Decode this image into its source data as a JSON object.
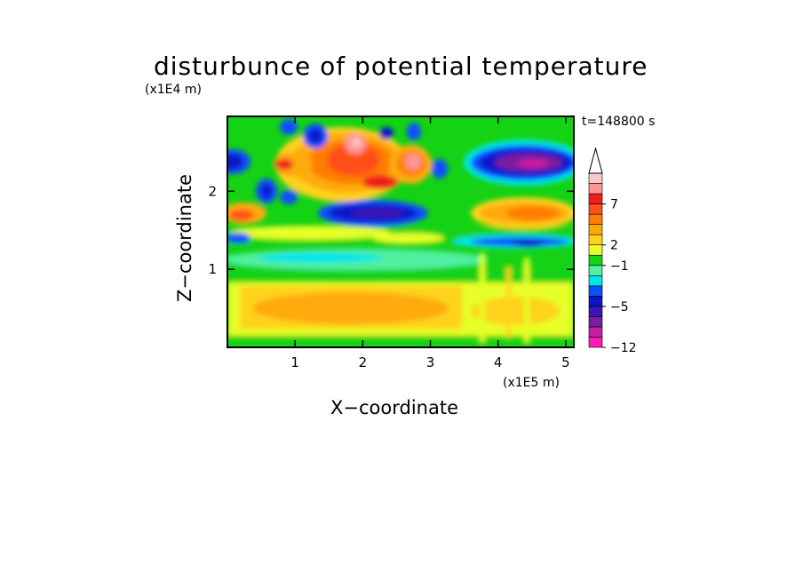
{
  "chart_data": {
    "type": "heatmap",
    "title": "disturbunce of potential temperature",
    "time_label": "t=148800 s",
    "xlabel": "X−coordinate",
    "ylabel": "Z−coordinate",
    "x_unit": "(x1E5 m)",
    "y_unit": "(x1E4 m)",
    "xlim": [
      0,
      5.12
    ],
    "ylim": [
      0,
      2.96
    ],
    "x_ticks": [
      "1",
      "2",
      "3",
      "4",
      "5"
    ],
    "y_ticks": [
      "1",
      "2"
    ],
    "colorbar": {
      "labels": [
        "7",
        "2",
        "−1",
        "−5",
        "−12"
      ],
      "label_values": [
        7,
        2,
        -1,
        -5,
        -12
      ],
      "colors": [
        "#ff1ab4",
        "#c81ea0",
        "#7a1ea0",
        "#3c14b4",
        "#0a14c8",
        "#0a50ff",
        "#00e6e6",
        "#50f0a0",
        "#14d214",
        "#e6ff28",
        "#ffd21e",
        "#ffaa0a",
        "#ff7d00",
        "#ff5014",
        "#f01e1e",
        "#ff9696",
        "#ffc8c8",
        "#ffffff"
      ]
    },
    "features": [
      {
        "x": 1.9,
        "z": 2.6,
        "value": 9
      },
      {
        "x": 2.1,
        "z": 2.35,
        "value": 5
      },
      {
        "x": 2.8,
        "z": 2.4,
        "value": 6
      },
      {
        "x": 1.2,
        "z": 2.55,
        "value": 3
      },
      {
        "x": 2.4,
        "z": 1.75,
        "value": -6
      },
      {
        "x": 4.4,
        "z": 2.35,
        "value": -8
      },
      {
        "x": 0.05,
        "z": 2.4,
        "value": -5
      },
      {
        "x": 1.3,
        "z": 2.75,
        "value": -4
      },
      {
        "x": 0.4,
        "z": 1.75,
        "value": 3
      },
      {
        "x": 2.0,
        "z": 0.55,
        "value": 2
      },
      {
        "x": 1.6,
        "z": 1.15,
        "value": -1
      },
      {
        "x": 4.3,
        "z": 1.35,
        "value": -4
      },
      {
        "x": 4.4,
        "z": 1.75,
        "value": 4
      }
    ]
  }
}
